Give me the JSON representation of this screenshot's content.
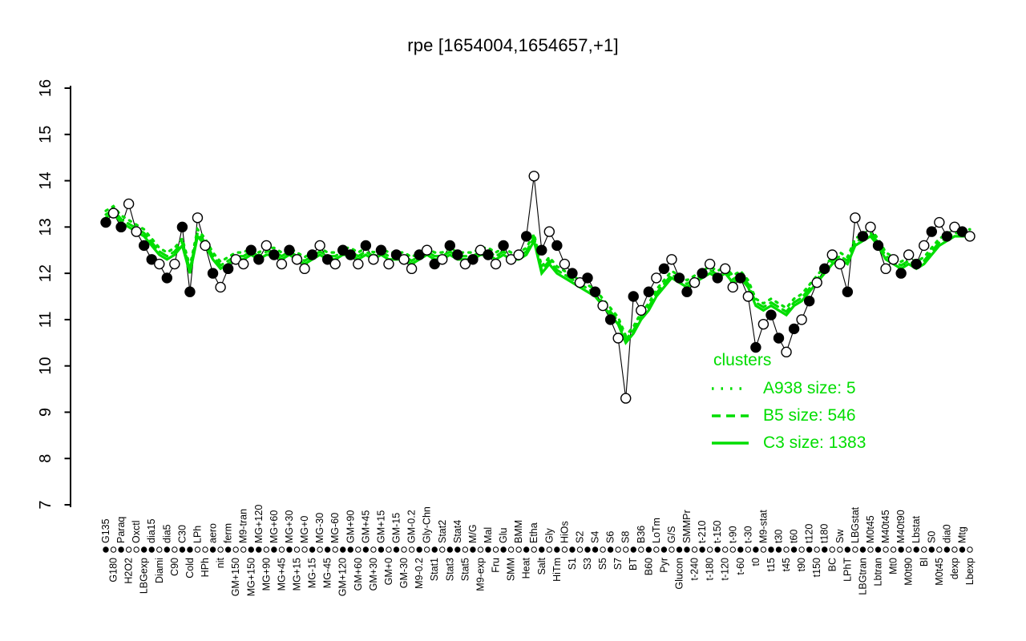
{
  "page": {
    "background": "#ffffff"
  },
  "chart_data": {
    "type": "line",
    "title": "rpe [1654004,1654657,+1]",
    "xlabel": "",
    "ylabel": "",
    "ylim": [
      7,
      16
    ],
    "yticks": [
      7,
      8,
      9,
      10,
      11,
      12,
      13,
      14,
      15,
      16
    ],
    "grid": false,
    "legend_position": "right-center",
    "colors": {
      "gene": "#000000",
      "cluster": "#00dd00",
      "open_marker_fill": "#ffffff"
    },
    "categories": [
      "G135",
      "G180",
      "Paraq",
      "H2O2",
      "Oxctl",
      "LBGexp",
      "dia15",
      "Diami",
      "dia5",
      "C90",
      "C30",
      "Cold",
      "LPh",
      "HPh",
      "aero",
      "nit",
      "ferm",
      "GM+150",
      "M9-tran",
      "MG+150",
      "MG+120",
      "MG+90",
      "MG+60",
      "MG+45",
      "MG+30",
      "MG+15",
      "MG+0",
      "MG-15",
      "MG-30",
      "MG-45",
      "MG-60",
      "GM+120",
      "GM+90",
      "GM+60",
      "GM+45",
      "GM+30",
      "GM+15",
      "GM+0",
      "GM-15",
      "GM-30",
      "GM-0.2",
      "M9-0.2",
      "Gly-Chn",
      "Stat1",
      "Stat2",
      "Stat3",
      "Stat4",
      "Stat5",
      "M/G",
      "M9-exp",
      "Mal",
      "Fru",
      "Glu",
      "SMM",
      "BMM",
      "Heat",
      "Etha",
      "Salt",
      "Gly",
      "HiTm",
      "HiOs",
      "S1",
      "S2",
      "S3",
      "S4",
      "S5",
      "S6",
      "S7",
      "S8",
      "BT",
      "B36",
      "B60",
      "LoTm",
      "Pyr",
      "G/S",
      "Glucon",
      "SMMPr",
      "t-240",
      "t-210",
      "t-180",
      "t-150",
      "t-120",
      "t-90",
      "t-60",
      "t-30",
      "t0",
      "M9-stat",
      "t15",
      "t30",
      "t45",
      "t60",
      "t90",
      "t120",
      "t150",
      "t180",
      "BC",
      "Sw",
      "LPhT",
      "LBGstat",
      "LBGtran",
      "M0t45",
      "Lbtran",
      "M40t45",
      "Mt0",
      "M40t90",
      "M0t90",
      "Lbstat",
      "Bl",
      "S0",
      "M0t45",
      "dia0",
      "dexp",
      "Mtg",
      "Lbexp"
    ],
    "series": [
      {
        "name": "rpe expression",
        "style": "points-line",
        "color": "#000000",
        "values": [
          13.1,
          13.3,
          13.0,
          13.5,
          12.9,
          12.6,
          12.3,
          12.2,
          11.9,
          12.2,
          13.0,
          11.6,
          13.2,
          12.6,
          12.0,
          11.7,
          12.1,
          12.3,
          12.2,
          12.5,
          12.3,
          12.6,
          12.4,
          12.2,
          12.5,
          12.3,
          12.1,
          12.4,
          12.6,
          12.3,
          12.2,
          12.5,
          12.4,
          12.2,
          12.6,
          12.3,
          12.5,
          12.2,
          12.4,
          12.3,
          12.1,
          12.4,
          12.5,
          12.2,
          12.3,
          12.6,
          12.4,
          12.2,
          12.3,
          12.5,
          12.4,
          12.2,
          12.6,
          12.3,
          12.4,
          12.8,
          14.1,
          12.5,
          12.9,
          12.6,
          12.2,
          12.0,
          11.8,
          11.9,
          11.6,
          11.3,
          11.0,
          10.6,
          9.3,
          11.5,
          11.2,
          11.6,
          11.9,
          12.1,
          12.3,
          11.9,
          11.6,
          11.8,
          12.0,
          12.2,
          11.9,
          12.1,
          11.7,
          11.9,
          11.5,
          10.4,
          10.9,
          11.1,
          10.6,
          10.3,
          10.8,
          11.0,
          11.4,
          11.8,
          12.1,
          12.4,
          12.2,
          11.6,
          13.2,
          12.8,
          13.0,
          12.6,
          12.1,
          12.3,
          12.0,
          12.4,
          12.2,
          12.6,
          12.9,
          13.1,
          12.8,
          13.0,
          12.9,
          12.8
        ]
      },
      {
        "name": "cluster mean",
        "style": "line",
        "color": "#00dd00",
        "values": [
          13.2,
          13.3,
          13.1,
          13.0,
          12.9,
          12.8,
          12.6,
          12.4,
          12.3,
          12.4,
          12.6,
          12.0,
          12.8,
          12.6,
          12.3,
          12.1,
          12.2,
          12.3,
          12.3,
          12.4,
          12.3,
          12.4,
          12.4,
          12.3,
          12.4,
          12.3,
          12.2,
          12.3,
          12.4,
          12.3,
          12.3,
          12.4,
          12.4,
          12.3,
          12.4,
          12.3,
          12.4,
          12.3,
          12.3,
          12.3,
          12.2,
          12.3,
          12.4,
          12.3,
          12.3,
          12.4,
          12.3,
          12.3,
          12.3,
          12.4,
          12.4,
          12.3,
          12.4,
          12.3,
          12.3,
          12.4,
          12.7,
          12.0,
          12.2,
          12.0,
          11.9,
          11.8,
          11.7,
          11.6,
          11.5,
          11.3,
          11.1,
          10.9,
          10.5,
          10.7,
          11.0,
          11.2,
          11.5,
          11.7,
          11.9,
          11.8,
          11.7,
          11.8,
          11.9,
          12.0,
          11.9,
          12.0,
          11.8,
          11.9,
          11.7,
          11.3,
          11.2,
          11.3,
          11.2,
          11.1,
          11.3,
          11.4,
          11.6,
          11.8,
          12.0,
          12.2,
          12.3,
          12.2,
          12.6,
          12.7,
          12.8,
          12.6,
          12.3,
          12.2,
          12.1,
          12.2,
          12.1,
          12.2,
          12.4,
          12.6,
          12.7,
          12.8,
          12.8,
          12.8
        ]
      }
    ],
    "open_marker": [
      0,
      1,
      0,
      1,
      1,
      0,
      0,
      1,
      0,
      1,
      0,
      0,
      1,
      1,
      0,
      1,
      0,
      1,
      1,
      0,
      0,
      1,
      0,
      1,
      0,
      1,
      1,
      0,
      1,
      0,
      1,
      0,
      0,
      1,
      0,
      1,
      0,
      1,
      0,
      1,
      1,
      0,
      1,
      0,
      1,
      0,
      0,
      1,
      0,
      1,
      0,
      1,
      0,
      1,
      1,
      0,
      1,
      0,
      1,
      0,
      1,
      0,
      1,
      0,
      0,
      1,
      0,
      1,
      1,
      0,
      1,
      0,
      1,
      0,
      1,
      0,
      0,
      1,
      0,
      1,
      0,
      1,
      1,
      0,
      1,
      0,
      1,
      0,
      0,
      1,
      0,
      1,
      0,
      1,
      0,
      1,
      1,
      0,
      1,
      0,
      1,
      0,
      1,
      1,
      0,
      1,
      0,
      1,
      0,
      1,
      0,
      1,
      0,
      1
    ],
    "clusters": [
      {
        "name": "A938",
        "size": 5,
        "linetype": "dotted"
      },
      {
        "name": "B5",
        "size": 546,
        "linetype": "dashed"
      },
      {
        "name": "C3",
        "size": 1383,
        "linetype": "solid"
      }
    ],
    "legend": {
      "title": "clusters",
      "items": [
        {
          "label": "A938 size: 5",
          "style": "dotted"
        },
        {
          "label": "B5 size: 546",
          "style": "dashed"
        },
        {
          "label": "C3 size: 1383",
          "style": "solid"
        }
      ]
    }
  }
}
